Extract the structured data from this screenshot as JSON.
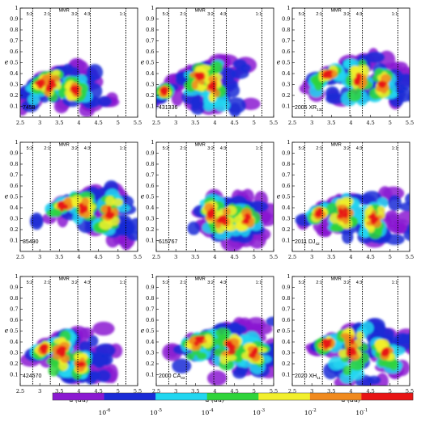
{
  "chart_data": {
    "type": "heatmap",
    "panels": [
      {
        "label": "7458",
        "label_sub": ""
      },
      {
        "label": "431336",
        "label_sub": ""
      },
      {
        "label": "2005 XR",
        "label_sub": "132"
      },
      {
        "label": "85490",
        "label_sub": ""
      },
      {
        "label": "615767",
        "label_sub": ""
      },
      {
        "label": "2011 DJ",
        "label_sub": "42"
      },
      {
        "label": "424570",
        "label_sub": ""
      },
      {
        "label": "2000 CA",
        "label_sub": "33"
      },
      {
        "label": "2020 XH",
        "label_sub": "11"
      }
    ],
    "xlabel": "a (au)",
    "ylabel": "e",
    "xlim": [
      2.5,
      5.5
    ],
    "ylim": [
      0,
      1
    ],
    "xticks": [
      "2.5",
      "3",
      "3.5",
      "4",
      "4.5",
      "5",
      "5.5"
    ],
    "xtick_values": [
      2.5,
      3,
      3.5,
      4,
      4.5,
      5,
      5.5
    ],
    "yticks": [
      "0.1",
      "0.2",
      "0.3",
      "0.4",
      "0.5",
      "0.6",
      "0.7",
      "0.8",
      "0.9",
      "1"
    ],
    "ytick_values": [
      0.1,
      0.2,
      0.3,
      0.4,
      0.5,
      0.6,
      0.7,
      0.8,
      0.9,
      1
    ],
    "mmr_title": "MMR",
    "resonances": [
      {
        "label": "5:2",
        "a": 2.82
      },
      {
        "label": "2:1",
        "a": 3.27
      },
      {
        "label": "3:2",
        "a": 3.97
      },
      {
        "label": "4:3",
        "a": 4.29
      },
      {
        "label": "1:1",
        "a": 5.2
      }
    ],
    "colorbar": {
      "ticks": [
        {
          "base": "10",
          "exp": "-6"
        },
        {
          "base": "10",
          "exp": "-5"
        },
        {
          "base": "10",
          "exp": "-4"
        },
        {
          "base": "10",
          "exp": "-3"
        },
        {
          "base": "10",
          "exp": "-2"
        },
        {
          "base": "10",
          "exp": "-1"
        }
      ],
      "colors": [
        "#8b1ad1",
        "#1a2bd6",
        "#21d6f0",
        "#2fd43b",
        "#f2ef2c",
        "#f08a1e",
        "#e81414"
      ]
    }
  }
}
